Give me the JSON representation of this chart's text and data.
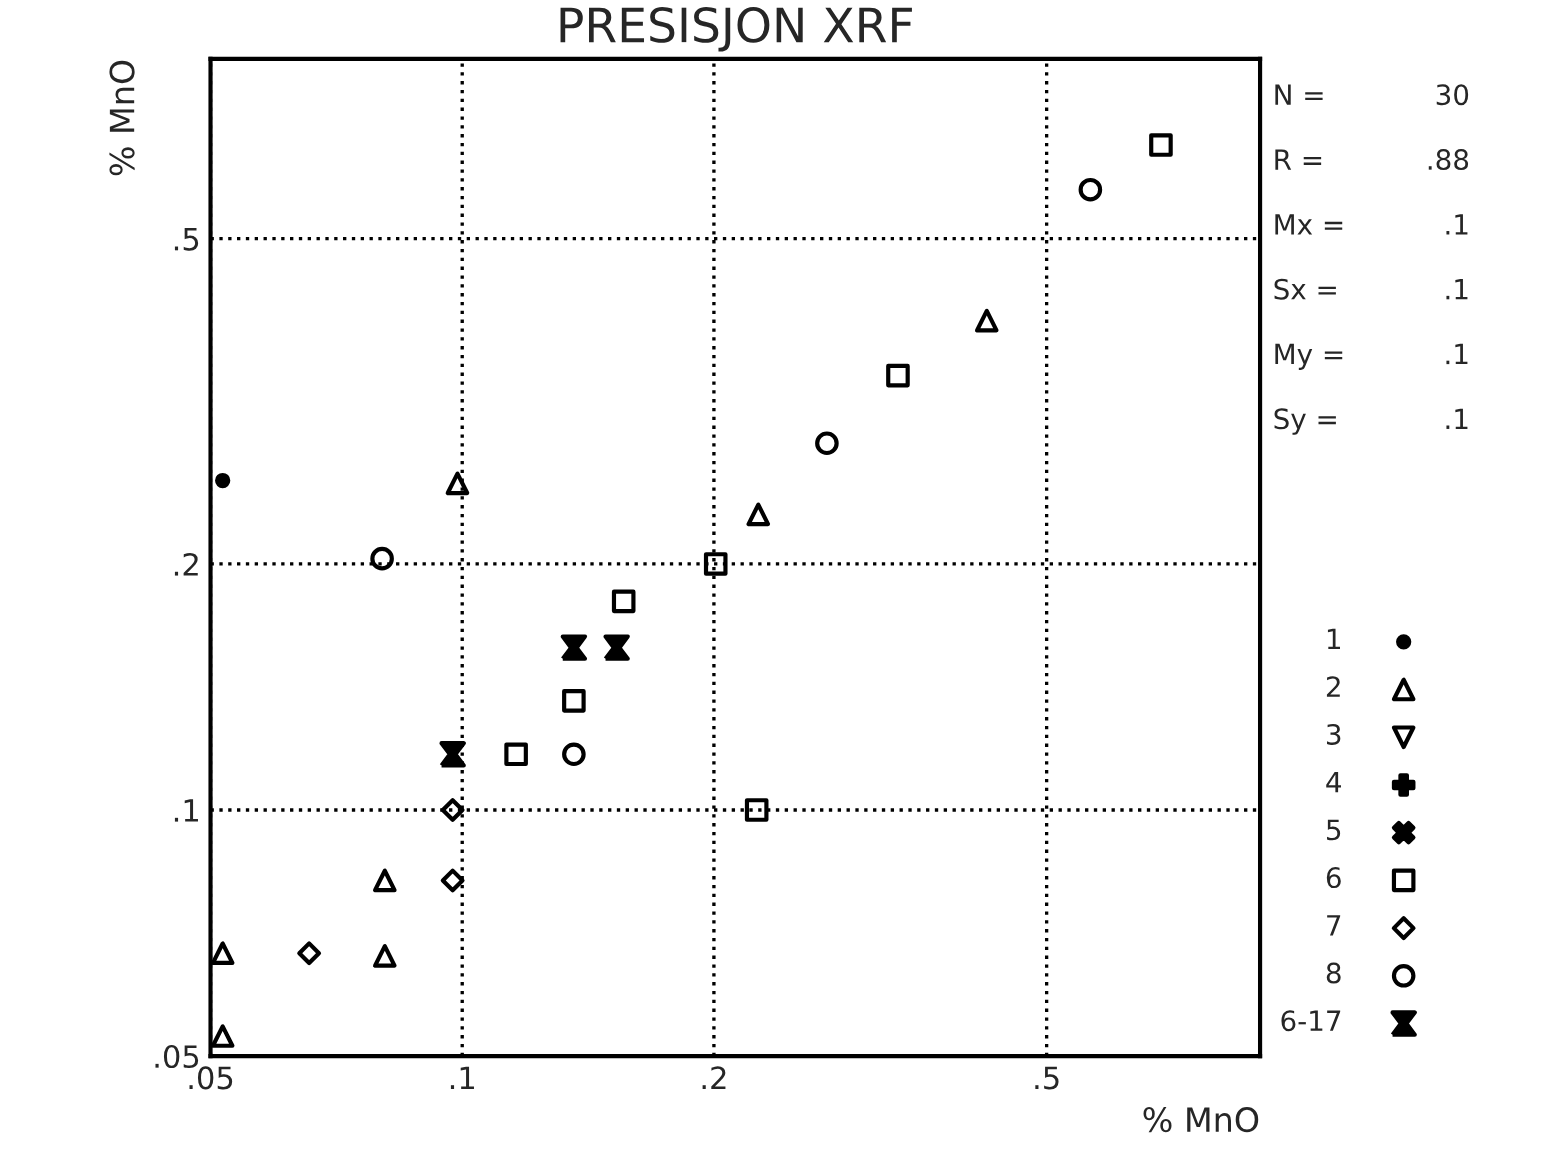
{
  "chart_data": {
    "type": "scatter",
    "title": "PRESISJON XRF",
    "xlabel": "% MnO",
    "ylabel": "% MnO",
    "log": "xy",
    "xlim": [
      0.05,
      0.9
    ],
    "ylim": [
      0.05,
      0.83
    ],
    "xticks": [
      {
        "value": 0.05,
        "label": ".05"
      },
      {
        "value": 0.1,
        "label": ".1"
      },
      {
        "value": 0.2,
        "label": ".2"
      },
      {
        "value": 0.5,
        "label": ".5"
      }
    ],
    "yticks": [
      {
        "value": 0.05,
        "label": ".05"
      },
      {
        "value": 0.1,
        "label": ".1"
      },
      {
        "value": 0.2,
        "label": ".2"
      },
      {
        "value": 0.5,
        "label": ".5"
      }
    ],
    "grid": true,
    "line_style": "dotted",
    "legend": "right",
    "annotations": [
      "N =",
      "30",
      "R =",
      ".88",
      "Mx =",
      ".1",
      "Sx =",
      ".1",
      "My =",
      ".1",
      "Sy =",
      ".1"
    ],
    "series": [
      {
        "name": "1",
        "color": "#000000",
        "x": [
          0.0517
        ],
        "values": [
          0.253
        ]
      },
      {
        "name": "2",
        "color": "#000000",
        "x": [
          0.0517,
          0.0517,
          0.0808,
          0.0808,
          0.0987,
          0.226,
          0.424
        ],
        "values": [
          0.0668,
          0.0529,
          0.082,
          0.0663,
          0.251,
          0.23,
          0.397
        ]
      },
      {
        "name": "3",
        "color": "#000000"
      },
      {
        "name": "4",
        "color": "#000000"
      },
      {
        "name": "5",
        "color": "#000000"
      },
      {
        "name": "6",
        "color": "#000000",
        "x": [
          0.116,
          0.136,
          0.156,
          0.332,
          0.685,
          0.225,
          0.201
        ],
        "values": [
          0.117,
          0.136,
          0.18,
          0.34,
          0.651,
          0.1,
          0.2
        ]
      },
      {
        "name": "7",
        "color": "#000000",
        "x": [
          0.0656,
          0.0974,
          0.0974
        ],
        "values": [
          0.0668,
          0.082,
          0.1
        ]
      },
      {
        "name": "8",
        "color": "#000000",
        "x": [
          0.0802,
          0.136,
          0.273,
          0.564
        ],
        "values": [
          0.203,
          0.117,
          0.281,
          0.574
        ]
      },
      {
        "name": "6-17",
        "color": "#000000",
        "x": [
          0.136,
          0.153,
          0.0974
        ],
        "values": [
          0.158,
          0.158,
          0.117
        ]
      }
    ]
  }
}
